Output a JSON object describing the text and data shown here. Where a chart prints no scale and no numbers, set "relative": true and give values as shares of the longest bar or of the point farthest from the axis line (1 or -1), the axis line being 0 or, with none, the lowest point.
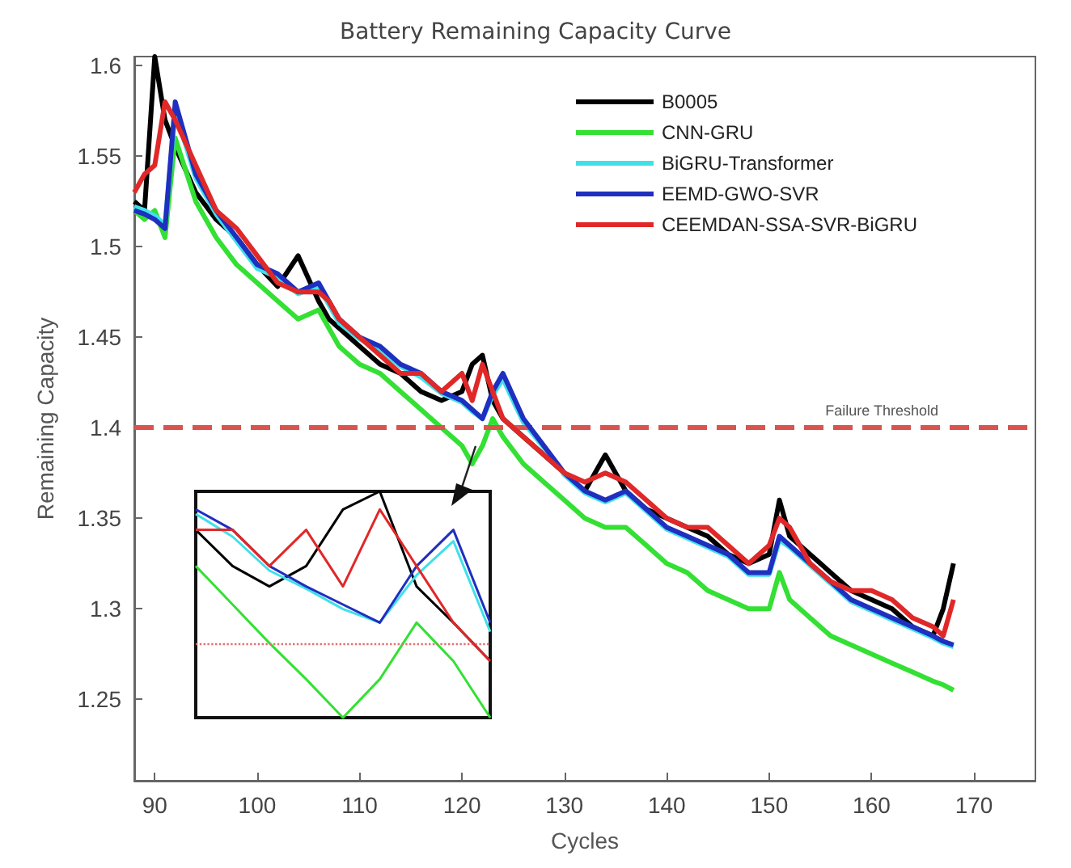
{
  "chart_data": [
    {
      "type": "line",
      "title": "Battery Remaining Capacity Curve",
      "xlabel": "Cycles",
      "ylabel": "Remaining Capacity",
      "x": [
        88,
        89,
        90,
        91,
        92,
        94,
        96,
        98,
        100,
        102,
        104,
        106,
        107,
        108,
        110,
        112,
        114,
        116,
        118,
        120,
        121,
        122,
        123,
        124,
        126,
        128,
        130,
        132,
        134,
        136,
        138,
        140,
        142,
        144,
        146,
        148,
        150,
        151,
        152,
        154,
        156,
        158,
        160,
        162,
        164,
        166,
        167,
        168
      ],
      "series": [
        {
          "name": "B0005",
          "color": "#000000",
          "values": [
            1.525,
            1.52,
            1.605,
            1.57,
            1.555,
            1.53,
            1.515,
            1.505,
            1.49,
            1.478,
            1.495,
            1.47,
            1.46,
            1.455,
            1.445,
            1.435,
            1.43,
            1.42,
            1.415,
            1.42,
            1.435,
            1.44,
            1.415,
            1.405,
            1.395,
            1.385,
            1.375,
            1.365,
            1.385,
            1.365,
            1.355,
            1.35,
            1.345,
            1.34,
            1.33,
            1.325,
            1.33,
            1.36,
            1.34,
            1.33,
            1.32,
            1.31,
            1.305,
            1.3,
            1.29,
            1.285,
            1.3,
            1.325
          ]
        },
        {
          "name": "CNN-GRU",
          "color": "#33e033",
          "values": [
            1.52,
            1.515,
            1.52,
            1.505,
            1.56,
            1.525,
            1.505,
            1.49,
            1.48,
            1.47,
            1.46,
            1.465,
            1.455,
            1.445,
            1.435,
            1.43,
            1.42,
            1.41,
            1.4,
            1.39,
            1.38,
            1.39,
            1.405,
            1.395,
            1.38,
            1.37,
            1.36,
            1.35,
            1.345,
            1.345,
            1.335,
            1.325,
            1.32,
            1.31,
            1.305,
            1.3,
            1.3,
            1.32,
            1.305,
            1.295,
            1.285,
            1.28,
            1.275,
            1.27,
            1.265,
            1.26,
            1.258,
            1.255
          ]
        },
        {
          "name": "BiGRU-Transformer",
          "color": "#40e0e8",
          "values": [
            1.522,
            1.52,
            1.517,
            1.512,
            1.575,
            1.538,
            1.518,
            1.503,
            1.488,
            1.483,
            1.474,
            1.478,
            1.468,
            1.458,
            1.449,
            1.443,
            1.434,
            1.428,
            1.419,
            1.414,
            1.409,
            1.405,
            1.418,
            1.427,
            1.403,
            1.389,
            1.374,
            1.364,
            1.359,
            1.364,
            1.354,
            1.344,
            1.339,
            1.334,
            1.329,
            1.319,
            1.319,
            1.338,
            1.334,
            1.324,
            1.314,
            1.304,
            1.299,
            1.294,
            1.289,
            1.284,
            1.281,
            1.279
          ]
        },
        {
          "name": "EEMD-GWO-SVR",
          "color": "#1f2fbf",
          "values": [
            1.52,
            1.518,
            1.515,
            1.51,
            1.58,
            1.54,
            1.52,
            1.505,
            1.49,
            1.485,
            1.475,
            1.48,
            1.47,
            1.46,
            1.45,
            1.445,
            1.435,
            1.43,
            1.42,
            1.415,
            1.41,
            1.405,
            1.42,
            1.43,
            1.405,
            1.39,
            1.375,
            1.365,
            1.36,
            1.365,
            1.355,
            1.345,
            1.34,
            1.335,
            1.33,
            1.32,
            1.32,
            1.34,
            1.335,
            1.325,
            1.315,
            1.305,
            1.3,
            1.295,
            1.29,
            1.285,
            1.282,
            1.28
          ]
        },
        {
          "name": "CEEMDAN-SSA-SVR-BiGRU",
          "color": "#e02828",
          "values": [
            1.53,
            1.54,
            1.545,
            1.58,
            1.57,
            1.545,
            1.52,
            1.51,
            1.495,
            1.48,
            1.475,
            1.475,
            1.47,
            1.46,
            1.45,
            1.44,
            1.43,
            1.43,
            1.42,
            1.43,
            1.415,
            1.435,
            1.42,
            1.405,
            1.395,
            1.385,
            1.375,
            1.37,
            1.375,
            1.37,
            1.36,
            1.35,
            1.345,
            1.345,
            1.335,
            1.325,
            1.335,
            1.35,
            1.345,
            1.325,
            1.315,
            1.31,
            1.31,
            1.305,
            1.295,
            1.29,
            1.285,
            1.305
          ]
        }
      ],
      "xlim": [
        88,
        176
      ],
      "xticks": [
        90,
        100,
        110,
        120,
        130,
        140,
        150,
        160,
        170
      ],
      "ylim": [
        1.205,
        1.605
      ],
      "yticks": [
        1.25,
        1.3,
        1.35,
        1.4,
        1.45,
        1.5,
        1.55,
        1.6
      ],
      "ref_lines": [
        {
          "axis": "y",
          "value": 1.4,
          "label": "Failure Threshold",
          "color": "#d9534f",
          "line_style": "dashed"
        }
      ],
      "legend": "top right",
      "grid": false,
      "line_style": "solid",
      "marker": "none"
    },
    {
      "type": "line",
      "categories": [
        null,
        null,
        null,
        null,
        null,
        null,
        null,
        null,
        null
      ],
      "relative": true,
      "series": [
        {
          "color": "#000000",
          "values": [
            0.83,
            0.67,
            0.58,
            0.67,
            0.92,
            1,
            0.58,
            0.42,
            0.25
          ]
        },
        {
          "color": "#33e033",
          "values": [
            0.67,
            0.5,
            0.33,
            0.17,
            0,
            0.17,
            0.42,
            0.25,
            0
          ]
        },
        {
          "color": "#40e0e8",
          "values": [
            0.9,
            0.8,
            0.65,
            0.57,
            0.48,
            0.42,
            0.63,
            0.78,
            0.38
          ]
        },
        {
          "color": "#1f2fbf",
          "values": [
            0.92,
            0.83,
            0.67,
            0.58,
            0.5,
            0.42,
            0.67,
            0.83,
            0.42
          ]
        },
        {
          "color": "#e02828",
          "values": [
            0.83,
            0.83,
            0.67,
            0.83,
            0.58,
            0.92,
            0.67,
            0.42,
            0.25
          ]
        }
      ],
      "ref_lines": [
        {
          "axis": "y",
          "value": 0.33,
          "color": "#e07070",
          "line_style": "dotted"
        }
      ],
      "grid": false,
      "line_style": "solid",
      "marker": "none"
    }
  ]
}
